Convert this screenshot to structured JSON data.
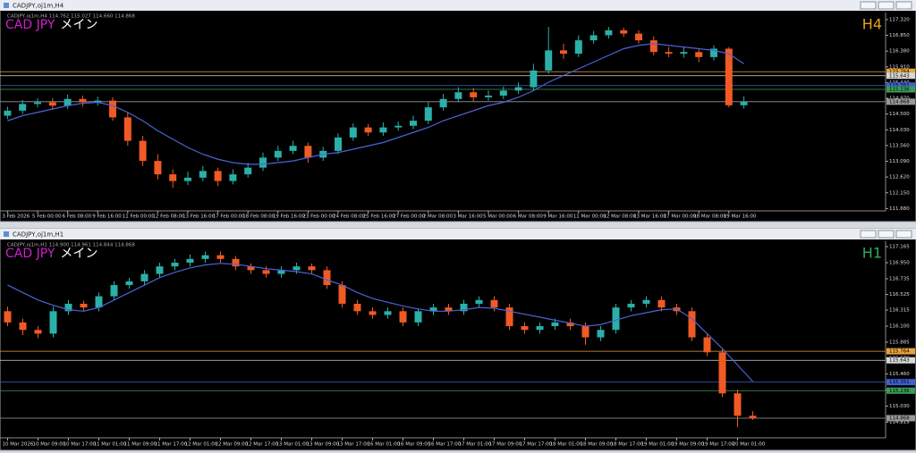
{
  "chart_data": [
    {
      "type": "candlestick",
      "window_title": "CADJPY,oj1m,H4",
      "info": "CADJPY,oj1m,H4  114.762 115.027 114.660 114.868",
      "symbol": "CAD JPY",
      "caption": "メイン",
      "timeframe": "H4",
      "timeframe_color": "#e8a020",
      "x": [
        "3 Feb 2026",
        null,
        "5 Feb 00:00",
        null,
        "6 Feb 08:00",
        null,
        "9 Feb 16:00",
        null,
        "11 Feb 00:00",
        null,
        "12 Feb 08:00",
        null,
        "13 Feb 16:00",
        null,
        "17 Feb 00:00",
        null,
        "18 Feb 08:00",
        null,
        "19 Feb 16:00",
        null,
        "23 Feb 00:00",
        null,
        "24 Feb 08:00",
        null,
        "25 Feb 16:00",
        null,
        "27 Feb 00:00",
        null,
        "2 Mar 08:00",
        null,
        "3 Mar 16:00",
        null,
        "5 Mar 00:00",
        null,
        "6 Mar 08:00",
        null,
        "9 Mar 16:00",
        null,
        "11 Mar 00:00",
        null,
        "12 Mar 08:00",
        null,
        "13 Mar 16:00",
        null,
        "17 Mar 00:00",
        null,
        "18 Mar 08:00",
        null,
        "19 Mar 16:00",
        null
      ],
      "open": [
        114.45,
        114.6,
        114.8,
        114.85,
        114.75,
        114.95,
        114.85,
        114.9,
        114.4,
        113.7,
        113.1,
        112.7,
        112.5,
        112.6,
        112.8,
        112.5,
        112.7,
        112.9,
        113.2,
        113.4,
        113.55,
        113.2,
        113.4,
        113.8,
        114.1,
        113.95,
        114.1,
        114.15,
        114.3,
        114.7,
        114.95,
        115.15,
        115.0,
        115.05,
        115.2,
        115.3,
        115.8,
        116.4,
        116.3,
        116.7,
        116.85,
        117.0,
        116.9,
        116.7,
        116.35,
        116.3,
        116.35,
        116.2,
        116.45,
        114.762
      ],
      "high": [
        114.72,
        114.92,
        114.97,
        114.98,
        115.08,
        115.05,
        115.02,
        115.0,
        114.55,
        113.85,
        113.3,
        112.85,
        112.78,
        112.95,
        112.9,
        112.85,
        113.05,
        113.35,
        113.55,
        113.7,
        113.65,
        113.52,
        113.92,
        114.22,
        114.2,
        114.25,
        114.28,
        114.45,
        114.85,
        115.1,
        115.3,
        115.28,
        115.2,
        115.32,
        115.45,
        116.0,
        117.1,
        116.6,
        116.85,
        116.98,
        117.1,
        117.08,
        117.0,
        116.82,
        116.5,
        116.5,
        116.45,
        116.55,
        116.5,
        115.027
      ],
      "low": [
        114.35,
        114.5,
        114.7,
        114.62,
        114.65,
        114.72,
        114.75,
        114.3,
        113.55,
        112.95,
        112.55,
        112.3,
        112.38,
        112.5,
        112.35,
        112.4,
        112.6,
        112.8,
        113.1,
        113.3,
        113.05,
        113.1,
        113.3,
        113.7,
        113.85,
        113.85,
        114.0,
        114.05,
        114.2,
        114.6,
        114.85,
        114.88,
        114.9,
        114.95,
        115.1,
        115.2,
        115.7,
        116.15,
        116.2,
        116.6,
        116.75,
        116.8,
        116.6,
        116.25,
        116.2,
        116.18,
        116.05,
        116.1,
        114.7,
        114.66
      ],
      "close": [
        114.6,
        114.8,
        114.85,
        114.75,
        114.95,
        114.85,
        114.9,
        114.4,
        113.7,
        113.1,
        112.7,
        112.5,
        112.6,
        112.8,
        112.5,
        112.7,
        112.9,
        113.2,
        113.4,
        113.55,
        113.2,
        113.4,
        113.8,
        114.1,
        113.95,
        114.1,
        114.15,
        114.3,
        114.7,
        114.95,
        115.15,
        115.0,
        115.05,
        115.2,
        115.3,
        115.8,
        116.4,
        116.3,
        116.7,
        116.85,
        117.0,
        116.9,
        116.7,
        116.35,
        116.3,
        116.35,
        116.2,
        116.45,
        114.762,
        114.868
      ],
      "up_color": "#2ab0a8",
      "down_color": "#f05a24",
      "ma_values": [
        114.3,
        114.45,
        114.55,
        114.65,
        114.75,
        114.82,
        114.85,
        114.75,
        114.55,
        114.3,
        114.0,
        113.75,
        113.5,
        113.3,
        113.15,
        113.05,
        113.0,
        113.0,
        113.05,
        113.1,
        113.2,
        113.3,
        113.35,
        113.45,
        113.55,
        113.65,
        113.8,
        113.95,
        114.1,
        114.3,
        114.45,
        114.6,
        114.75,
        114.85,
        115.0,
        115.2,
        115.45,
        115.65,
        115.85,
        116.05,
        116.25,
        116.45,
        116.55,
        116.6,
        116.55,
        116.5,
        116.45,
        116.4,
        116.3,
        116.0
      ],
      "ma_color": "#4d63d6",
      "ylim": [
        111.61,
        117.53
      ],
      "yticks": [
        {
          "value": 117.32,
          "label": "117.320"
        },
        {
          "value": 116.85,
          "label": "116.850"
        },
        {
          "value": 116.38,
          "label": "116.380"
        },
        {
          "value": 115.91,
          "label": "115.910"
        },
        {
          "value": 115.44,
          "label": "115.440"
        },
        {
          "value": 114.97,
          "label": "114.970"
        },
        {
          "value": 114.5,
          "label": "114.500"
        },
        {
          "value": 114.03,
          "label": "114.030"
        },
        {
          "value": 113.56,
          "label": "113.560"
        },
        {
          "value": 113.09,
          "label": "113.090"
        },
        {
          "value": 112.62,
          "label": "112.620"
        },
        {
          "value": 112.15,
          "label": "112.150"
        },
        {
          "value": 111.68,
          "label": "111.680"
        }
      ],
      "levels": [
        {
          "value": 115.764,
          "label": "115.764",
          "color": "#e8a33c"
        },
        {
          "value": 115.643,
          "label": "115.643",
          "color": "#d8d8d8"
        },
        {
          "value": 115.351,
          "label": "115.351",
          "color": "#4060d0"
        },
        {
          "value": 115.236,
          "label": "115.236",
          "color": "#3c9a5a"
        },
        {
          "value": 114.868,
          "label": "114.868",
          "color": "#9a9a9a"
        }
      ]
    },
    {
      "type": "candlestick",
      "window_title": "CADJPY,oj1m,H1",
      "info": "CADJPY,oj1m,H1  114.900 114.961 114.844 114.868",
      "symbol": "CAD JPY",
      "caption": "メイン",
      "timeframe": "H1",
      "timeframe_color": "#38a858",
      "x": [
        "10 Mar 2026",
        null,
        "10 Mar 09:00",
        null,
        "10 Mar 17:00",
        null,
        "11 Mar 01:00",
        null,
        "11 Mar 09:00",
        null,
        "11 Mar 17:00",
        null,
        "12 Mar 01:00",
        null,
        "12 Mar 09:00",
        null,
        "12 Mar 17:00",
        null,
        "13 Mar 01:00",
        null,
        "13 Mar 09:00",
        null,
        "13 Mar 17:00",
        null,
        "16 Mar 01:00",
        null,
        "16 Mar 09:00",
        null,
        "16 Mar 17:00",
        null,
        "17 Mar 01:00",
        null,
        "17 Mar 09:00",
        null,
        "17 Mar 17:00",
        null,
        "18 Mar 01:00",
        null,
        "18 Mar 09:00",
        null,
        "18 Mar 17:00",
        null,
        "19 Mar 01:00",
        null,
        "19 Mar 09:00",
        null,
        "19 Mar 17:00",
        null,
        "20 Mar 01:00",
        null
      ],
      "open": [
        116.3,
        116.15,
        116.05,
        116.0,
        116.3,
        116.4,
        116.35,
        116.5,
        116.65,
        116.7,
        116.8,
        116.9,
        116.95,
        117.0,
        117.05,
        117.0,
        116.9,
        116.85,
        116.8,
        116.85,
        116.9,
        116.85,
        116.65,
        116.4,
        116.3,
        116.25,
        116.3,
        116.15,
        116.3,
        116.35,
        116.3,
        116.4,
        116.45,
        116.35,
        116.1,
        116.05,
        116.1,
        116.15,
        116.1,
        115.95,
        116.05,
        116.35,
        116.4,
        116.45,
        116.35,
        116.3,
        115.95,
        115.75,
        115.2,
        114.9
      ],
      "high": [
        116.36,
        116.2,
        116.1,
        116.36,
        116.45,
        116.44,
        116.55,
        116.7,
        116.75,
        116.85,
        116.95,
        117.0,
        117.06,
        117.1,
        117.1,
        117.04,
        116.94,
        116.9,
        116.9,
        116.95,
        116.94,
        116.9,
        116.7,
        116.45,
        116.35,
        116.35,
        116.35,
        116.34,
        116.4,
        116.4,
        116.45,
        116.5,
        116.5,
        116.4,
        116.15,
        116.15,
        116.2,
        116.2,
        116.15,
        116.1,
        116.4,
        116.45,
        116.5,
        116.5,
        116.4,
        116.35,
        116.0,
        115.8,
        115.25,
        114.961
      ],
      "low": [
        116.1,
        115.98,
        115.94,
        115.95,
        116.25,
        116.3,
        116.3,
        116.45,
        116.6,
        116.65,
        116.75,
        116.85,
        116.9,
        116.95,
        116.95,
        116.85,
        116.8,
        116.75,
        116.75,
        116.8,
        116.8,
        116.6,
        116.35,
        116.25,
        116.2,
        116.2,
        116.1,
        116.1,
        116.25,
        116.25,
        116.25,
        116.35,
        116.3,
        116.05,
        116.0,
        116.0,
        116.05,
        116.05,
        115.85,
        115.9,
        116.0,
        116.3,
        116.35,
        116.3,
        116.25,
        115.9,
        115.7,
        115.15,
        114.75,
        114.844
      ],
      "close": [
        116.15,
        116.05,
        116.0,
        116.3,
        116.4,
        116.35,
        116.5,
        116.65,
        116.7,
        116.8,
        116.9,
        116.95,
        117.0,
        117.05,
        117.0,
        116.9,
        116.85,
        116.8,
        116.85,
        116.9,
        116.85,
        116.65,
        116.4,
        116.3,
        116.25,
        116.3,
        116.15,
        116.3,
        116.35,
        116.3,
        116.4,
        116.45,
        116.35,
        116.1,
        116.05,
        116.1,
        116.15,
        116.1,
        115.95,
        116.05,
        116.35,
        116.4,
        116.45,
        116.35,
        116.3,
        115.95,
        115.75,
        115.2,
        114.9,
        114.868
      ],
      "up_color": "#2ab0a8",
      "down_color": "#f05a24",
      "ma_values": [
        116.65,
        116.55,
        116.45,
        116.38,
        116.32,
        116.3,
        116.35,
        116.45,
        116.55,
        116.65,
        116.75,
        116.82,
        116.88,
        116.92,
        116.94,
        116.93,
        116.9,
        116.87,
        116.85,
        116.83,
        116.8,
        116.72,
        116.65,
        116.55,
        116.47,
        116.42,
        116.37,
        116.33,
        116.3,
        116.3,
        116.32,
        116.35,
        116.34,
        116.3,
        116.26,
        116.22,
        116.18,
        116.14,
        116.1,
        116.12,
        116.18,
        116.24,
        116.28,
        116.32,
        116.33,
        116.2,
        116.0,
        115.8,
        115.58,
        115.36
      ],
      "ma_color": "#4d63d6",
      "ylim": [
        114.605,
        117.237
      ],
      "yticks": [
        {
          "value": 117.165,
          "label": "117.165"
        },
        {
          "value": 116.95,
          "label": "116.950"
        },
        {
          "value": 116.735,
          "label": "116.735"
        },
        {
          "value": 116.525,
          "label": "116.525"
        },
        {
          "value": 116.315,
          "label": "116.315"
        },
        {
          "value": 116.1,
          "label": "116.100"
        },
        {
          "value": 115.885,
          "label": "115.885"
        },
        {
          "value": 115.67,
          "label": "115.670"
        },
        {
          "value": 115.46,
          "label": "115.460"
        },
        {
          "value": 115.245,
          "label": "115.245"
        },
        {
          "value": 115.03,
          "label": "115.030"
        },
        {
          "value": 114.815,
          "label": "114.815"
        }
      ],
      "levels": [
        {
          "value": 115.764,
          "label": "115.764",
          "color": "#e8a33c"
        },
        {
          "value": 115.643,
          "label": "115.643",
          "color": "#d8d8d8"
        },
        {
          "value": 115.351,
          "label": "115.351",
          "color": "#4060d0"
        },
        {
          "value": 115.236,
          "label": "115.236",
          "color": "#3c9a5a"
        },
        {
          "value": 114.868,
          "label": "114.868",
          "color": "#9a9a9a"
        }
      ]
    }
  ]
}
